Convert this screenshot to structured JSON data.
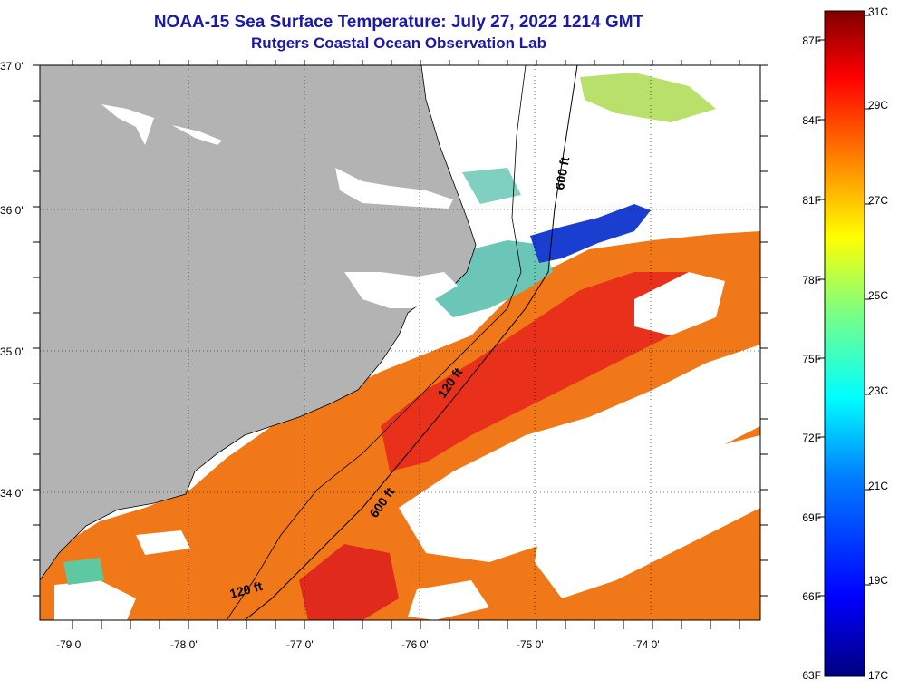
{
  "title": "NOAA-15 Sea Surface Temperature:  July 27, 2022 1214 GMT",
  "subtitle": "Rutgers Coastal Ocean Observation Lab",
  "axes": {
    "lat_labels": [
      "37 0'",
      "36 0'",
      "35 0'",
      "34 0'"
    ],
    "lon_labels": [
      "-79 0'",
      "-78 0'",
      "-77 0'",
      "-76 0'",
      "-75 0'",
      "-74 0'"
    ]
  },
  "isobaths": {
    "label_600_north": "600 ft",
    "label_120_mid": "120 ft",
    "label_600_south": "600 ft",
    "label_120_south": "120 ft"
  },
  "colorbar": {
    "fahrenheit": [
      "87F",
      "84F",
      "81F",
      "78F",
      "75F",
      "72F",
      "69F",
      "66F",
      "63F"
    ],
    "celsius": [
      "31C",
      "29C",
      "27C",
      "25C",
      "23C",
      "21C",
      "19C",
      "17C"
    ],
    "colors": [
      "#00007f",
      "#0000ff",
      "#007fff",
      "#00ffff",
      "#7fff7f",
      "#ffff00",
      "#ff7f00",
      "#ff0000",
      "#7f0000"
    ]
  },
  "colors": {
    "land": "#b3b3b3",
    "cloud": "#ffffff",
    "title": "#1a1aa6",
    "warm_water": "#f05a14",
    "hot_water": "#e8231a",
    "cool_water": "#4fb6e0",
    "cold_water": "#1a3fd0"
  }
}
